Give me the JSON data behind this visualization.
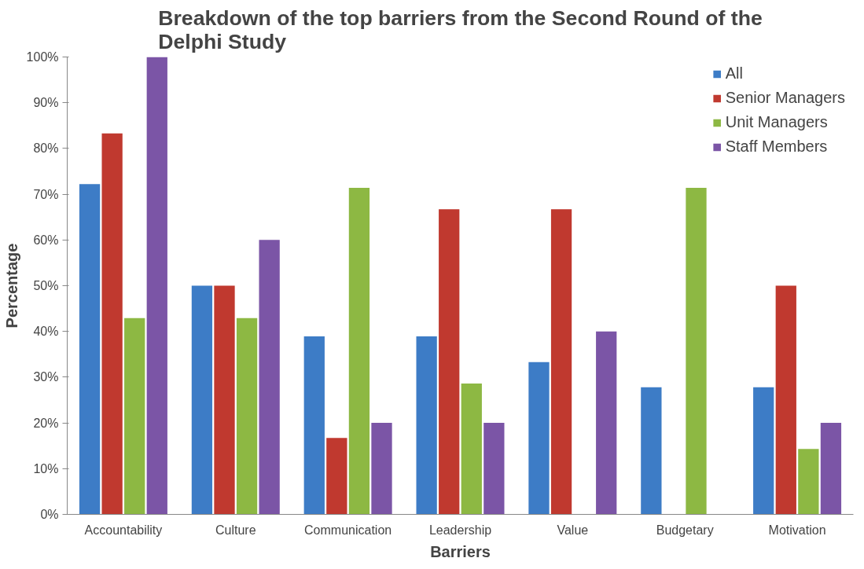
{
  "chart_data": {
    "type": "bar",
    "title": "Breakdown of the top barriers from the Second Round of the Delphi Study",
    "xlabel": "Barriers",
    "ylabel": "Percentage",
    "categories": [
      "Accountability",
      "Culture",
      "Communication",
      "Leadership",
      "Value",
      "Budgetary",
      "Motivation"
    ],
    "series": [
      {
        "name": "All",
        "color": "#3d7cc6",
        "values": [
          72.2,
          50,
          38.9,
          38.9,
          33.3,
          27.8,
          27.8
        ]
      },
      {
        "name": "Senior Managers",
        "color": "#c0392f",
        "values": [
          83.3,
          50,
          16.7,
          66.7,
          66.7,
          0,
          50
        ]
      },
      {
        "name": "Unit Managers",
        "color": "#8db843",
        "values": [
          42.9,
          42.9,
          71.4,
          28.6,
          0,
          71.4,
          14.3
        ]
      },
      {
        "name": "Staff Members",
        "color": "#7b55a6",
        "values": [
          100,
          60,
          20,
          20,
          40,
          0,
          20
        ]
      }
    ],
    "ylim": [
      0,
      100
    ],
    "yticks": [
      {
        "value": 0,
        "label": "0%"
      },
      {
        "value": 10,
        "label": "10%"
      },
      {
        "value": 20,
        "label": "20%"
      },
      {
        "value": 30,
        "label": "30%"
      },
      {
        "value": 40,
        "label": "40%"
      },
      {
        "value": 50,
        "label": "50%"
      },
      {
        "value": 60,
        "label": "60%"
      },
      {
        "value": 70,
        "label": "70%"
      },
      {
        "value": 80,
        "label": "80%"
      },
      {
        "value": 90,
        "label": "90%"
      },
      {
        "value": 100,
        "label": "100%"
      }
    ],
    "legend": "top right",
    "grid": false
  }
}
